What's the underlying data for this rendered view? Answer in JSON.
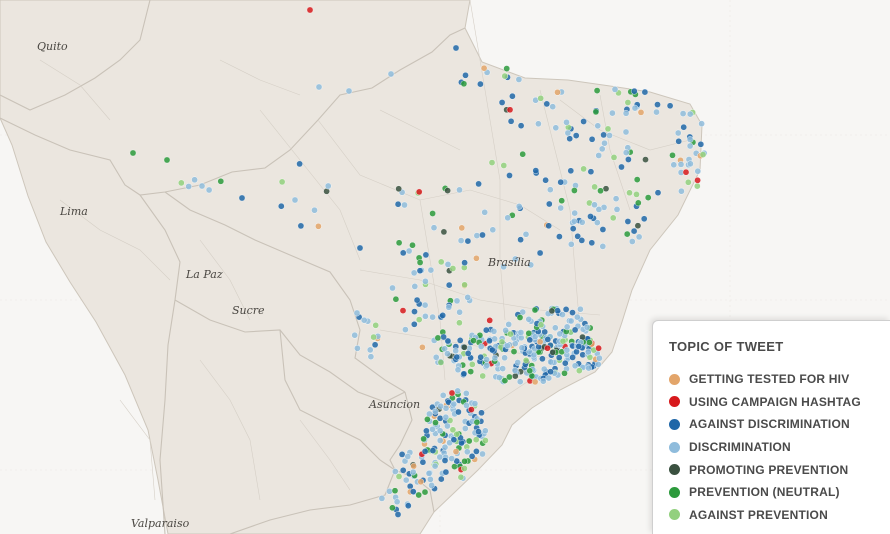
{
  "map": {
    "cities": [
      {
        "id": "quito",
        "label": "Quito"
      },
      {
        "id": "lima",
        "label": "Lima"
      },
      {
        "id": "la-paz",
        "label": "La Paz"
      },
      {
        "id": "sucre",
        "label": "Sucre"
      },
      {
        "id": "asuncion",
        "label": "Asuncion"
      },
      {
        "id": "valparaiso",
        "label": "Valparaiso"
      },
      {
        "id": "brasilia",
        "label": "Brasília"
      }
    ],
    "colors": {
      "land": "#ebe6df",
      "ocean": "#f7f6f4",
      "border": "#c9c2b8",
      "roads": "#d5cfc6"
    }
  },
  "legend": {
    "title": "TOPIC OF TWEET",
    "items": [
      {
        "key": "tested",
        "label": "GETTING TESTED FOR HIV",
        "color": "#e3a56a"
      },
      {
        "key": "hashtag",
        "label": "USING CAMPAIGN HASHTAG",
        "color": "#d7191c"
      },
      {
        "key": "against_disc",
        "label": "AGAINST DISCRIMINATION",
        "color": "#2067a8"
      },
      {
        "key": "disc",
        "label": "DISCRIMINATION",
        "color": "#8fbcdc"
      },
      {
        "key": "promoting",
        "label": "PROMOTING PREVENTION",
        "color": "#3a5140"
      },
      {
        "key": "neutral",
        "label": "PREVENTION (NEUTRAL)",
        "color": "#2c9a3c"
      },
      {
        "key": "against_prev",
        "label": "AGAINST PREVENTION",
        "color": "#92d07e"
      }
    ]
  }
}
